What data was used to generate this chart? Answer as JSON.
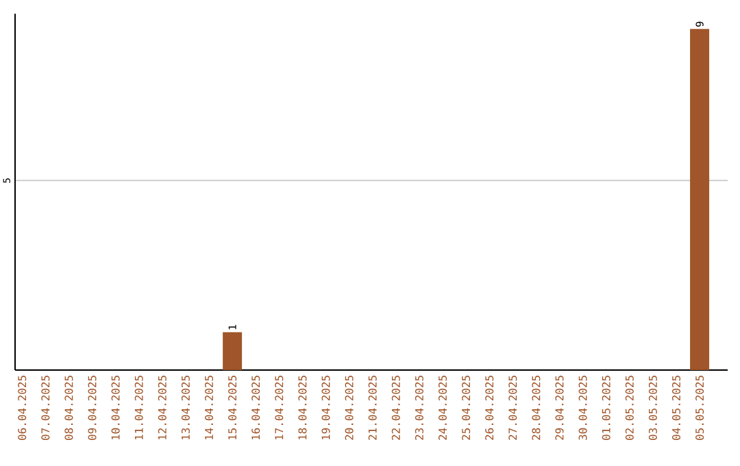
{
  "chart_data": {
    "type": "bar",
    "categories": [
      "06.04.2025",
      "07.04.2025",
      "08.04.2025",
      "09.04.2025",
      "10.04.2025",
      "11.04.2025",
      "12.04.2025",
      "13.04.2025",
      "14.04.2025",
      "15.04.2025",
      "16.04.2025",
      "17.04.2025",
      "18.04.2025",
      "19.04.2025",
      "20.04.2025",
      "21.04.2025",
      "22.04.2025",
      "23.04.2025",
      "24.04.2025",
      "25.04.2025",
      "26.04.2025",
      "27.04.2025",
      "28.04.2025",
      "29.04.2025",
      "30.04.2025",
      "01.05.2025",
      "02.05.2025",
      "03.05.2025",
      "04.05.2025",
      "05.05.2025"
    ],
    "values": [
      0,
      0,
      0,
      0,
      0,
      0,
      0,
      0,
      0,
      1,
      0,
      0,
      0,
      0,
      0,
      0,
      0,
      0,
      0,
      0,
      0,
      0,
      0,
      0,
      0,
      0,
      0,
      0,
      0,
      9
    ],
    "value_labels": [
      null,
      null,
      null,
      null,
      null,
      null,
      null,
      null,
      null,
      "1",
      null,
      null,
      null,
      null,
      null,
      null,
      null,
      null,
      null,
      null,
      null,
      null,
      null,
      null,
      null,
      null,
      null,
      null,
      null,
      "9"
    ],
    "color": "#a0562a",
    "ylim": [
      0,
      9.4
    ],
    "yticks": [
      5
    ],
    "grid": "y"
  }
}
